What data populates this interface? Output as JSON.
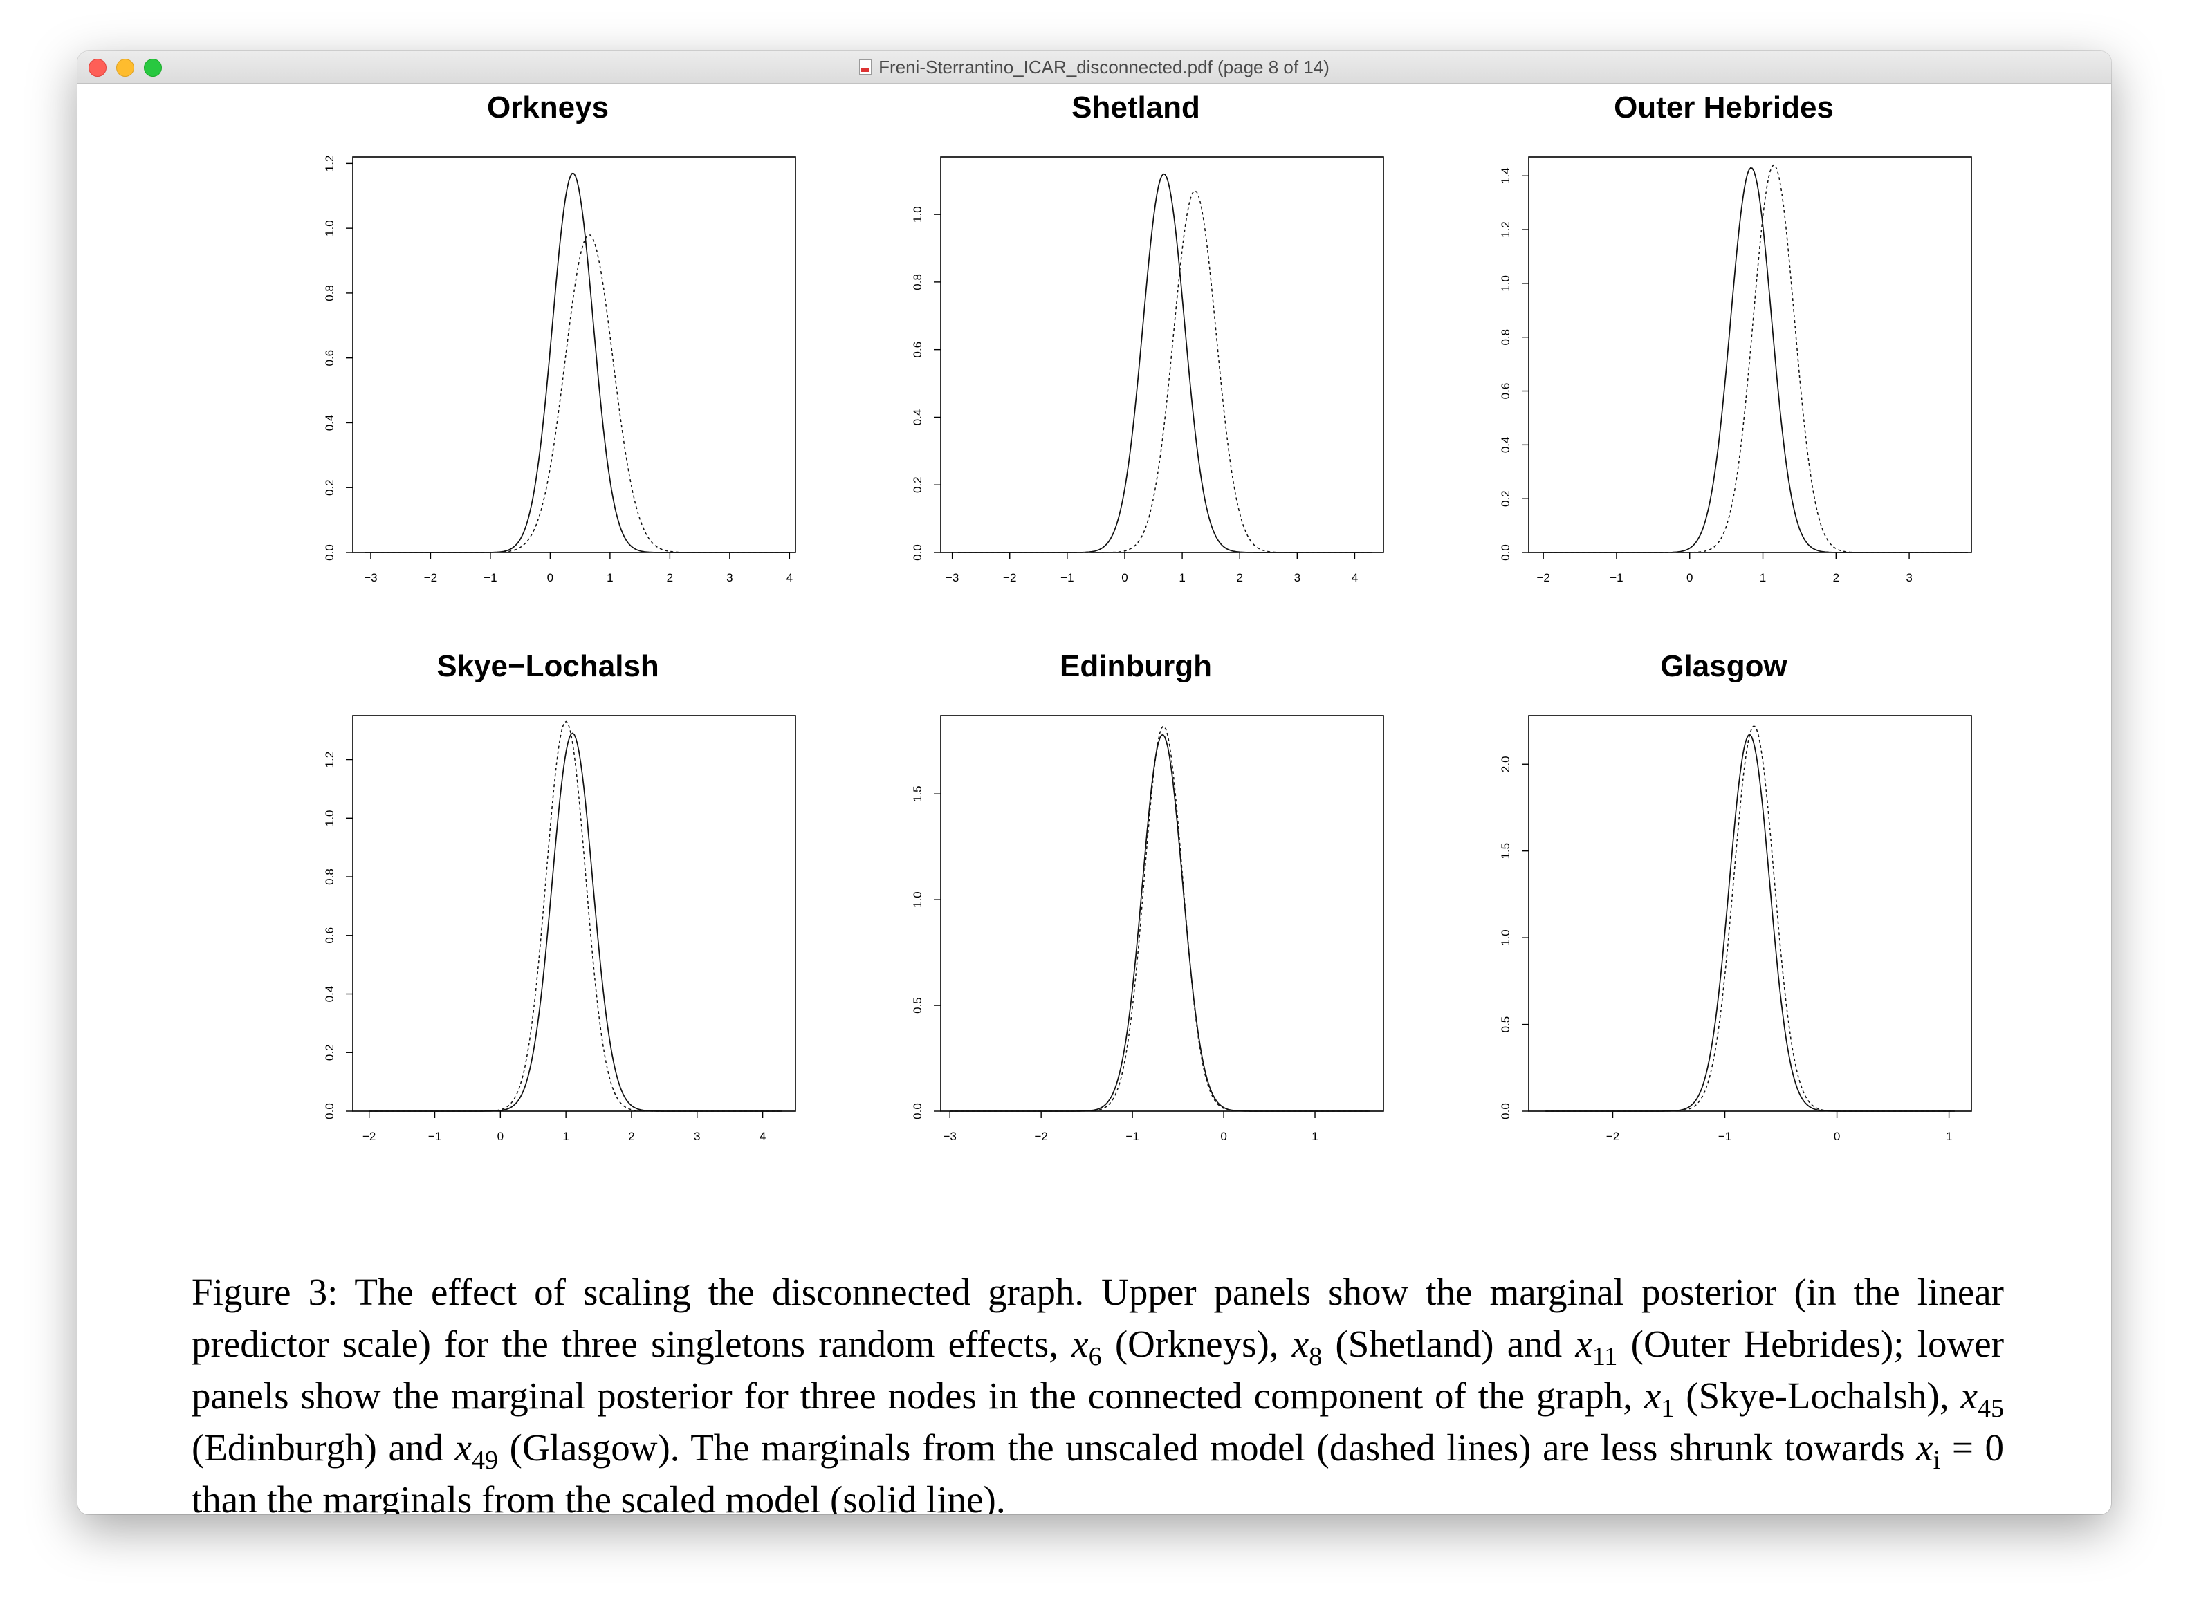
{
  "window": {
    "title": "Freni-Sterrantino_ICAR_disconnected.pdf (page 8 of 14)"
  },
  "chart_data": [
    {
      "type": "line",
      "title": "Orkneys",
      "xlim": [
        -3.3,
        4.1
      ],
      "ylim": [
        0,
        1.22
      ],
      "xticks": [
        "−3",
        "−2",
        "−1",
        "0",
        "1",
        "2",
        "3",
        "4"
      ],
      "xtick_values": [
        -3,
        -2,
        -1,
        0,
        1,
        2,
        3,
        4
      ],
      "yticks": [
        "0.0",
        "0.2",
        "0.4",
        "0.6",
        "0.8",
        "1.0",
        "1.2"
      ],
      "ytick_values": [
        0,
        0.2,
        0.4,
        0.6,
        0.8,
        1.0,
        1.2
      ],
      "x_range": [
        -3.1,
        4.0
      ],
      "series": [
        {
          "style": "solid",
          "mean": 0.38,
          "sd": 0.34,
          "peak": 1.17
        },
        {
          "style": "dashed",
          "mean": 0.65,
          "sd": 0.4,
          "peak": 0.98
        }
      ]
    },
    {
      "type": "line",
      "title": "Shetland",
      "xlim": [
        -3.2,
        4.5
      ],
      "ylim": [
        0,
        1.17
      ],
      "xticks": [
        "−3",
        "−2",
        "−1",
        "0",
        "1",
        "2",
        "3",
        "4"
      ],
      "xtick_values": [
        -3,
        -2,
        -1,
        0,
        1,
        2,
        3,
        4
      ],
      "yticks": [
        "0.0",
        "0.2",
        "0.4",
        "0.6",
        "0.8",
        "1.0"
      ],
      "ytick_values": [
        0,
        0.2,
        0.4,
        0.6,
        0.8,
        1.0
      ],
      "x_range": [
        -2.9,
        4.3
      ],
      "series": [
        {
          "style": "solid",
          "mean": 0.68,
          "sd": 0.36,
          "peak": 1.12
        },
        {
          "style": "dashed",
          "mean": 1.22,
          "sd": 0.37,
          "peak": 1.07
        }
      ]
    },
    {
      "type": "line",
      "title": "Outer Hebrides",
      "xlim": [
        -2.2,
        3.85
      ],
      "ylim": [
        0,
        1.47
      ],
      "xticks": [
        "−2",
        "−1",
        "0",
        "1",
        "2",
        "3"
      ],
      "xtick_values": [
        -2,
        -1,
        0,
        1,
        2,
        3
      ],
      "yticks": [
        "0.0",
        "0.2",
        "0.4",
        "0.6",
        "0.8",
        "1.0",
        "1.2",
        "1.4"
      ],
      "ytick_values": [
        0,
        0.2,
        0.4,
        0.6,
        0.8,
        1.0,
        1.2,
        1.4
      ],
      "x_range": [
        -2.0,
        3.8
      ],
      "series": [
        {
          "style": "solid",
          "mean": 0.84,
          "sd": 0.28,
          "peak": 1.43
        },
        {
          "style": "dashed",
          "mean": 1.15,
          "sd": 0.28,
          "peak": 1.44
        }
      ]
    },
    {
      "type": "line",
      "title": "Skye−Lochalsh",
      "xlim": [
        -2.25,
        4.5
      ],
      "ylim": [
        0,
        1.35
      ],
      "xticks": [
        "−2",
        "−1",
        "0",
        "1",
        "2",
        "3",
        "4"
      ],
      "xtick_values": [
        -2,
        -1,
        0,
        1,
        2,
        3,
        4
      ],
      "yticks": [
        "0.0",
        "0.2",
        "0.4",
        "0.6",
        "0.8",
        "1.0",
        "1.2"
      ],
      "ytick_values": [
        0,
        0.2,
        0.4,
        0.6,
        0.8,
        1.0,
        1.2
      ],
      "x_range": [
        -2.0,
        4.3
      ],
      "series": [
        {
          "style": "solid",
          "mean": 1.1,
          "sd": 0.31,
          "peak": 1.29
        },
        {
          "style": "dashed",
          "mean": 1.0,
          "sd": 0.3,
          "peak": 1.33
        }
      ]
    },
    {
      "type": "line",
      "title": "Edinburgh",
      "xlim": [
        -3.1,
        1.75
      ],
      "ylim": [
        0,
        1.87
      ],
      "xticks": [
        "−3",
        "−2",
        "−1",
        "0",
        "1"
      ],
      "xtick_values": [
        -3,
        -2,
        -1,
        0,
        1
      ],
      "yticks": [
        "0.0",
        "0.5",
        "1.0",
        "1.5"
      ],
      "ytick_values": [
        0,
        0.5,
        1.0,
        1.5
      ],
      "x_range": [
        -3.0,
        1.6
      ],
      "series": [
        {
          "style": "solid",
          "mean": -0.67,
          "sd": 0.22,
          "peak": 1.78
        },
        {
          "style": "dashed",
          "mean": -0.66,
          "sd": 0.21,
          "peak": 1.82
        }
      ]
    },
    {
      "type": "line",
      "title": "Glasgow",
      "xlim": [
        -2.75,
        1.2
      ],
      "ylim": [
        0,
        2.28
      ],
      "xticks": [
        "−2",
        "−1",
        "0",
        "1"
      ],
      "xtick_values": [
        -2,
        -1,
        0,
        1
      ],
      "yticks": [
        "0.0",
        "0.5",
        "1.0",
        "1.5",
        "2.0"
      ],
      "ytick_values": [
        0,
        0.5,
        1.0,
        1.5,
        2.0
      ],
      "x_range": [
        -2.6,
        1.05
      ],
      "series": [
        {
          "style": "solid",
          "mean": -0.78,
          "sd": 0.18,
          "peak": 2.17
        },
        {
          "style": "dashed",
          "mean": -0.74,
          "sd": 0.18,
          "peak": 2.22
        }
      ]
    }
  ],
  "caption": {
    "p1": "Figure 3: The effect of scaling the disconnected graph. Upper panels show the marginal posterior (in the linear predictor scale) for the three singletons random effects, ",
    "v1": "x",
    "s1": "6",
    "p2": " (Orkneys), ",
    "v2": "x",
    "s2": "8",
    "p3": " (Shetland) and ",
    "v3": "x",
    "s3": "11",
    "p4": " (Outer Hebrides); lower panels show the marginal posterior for three nodes in the connected component of the graph, ",
    "v4": "x",
    "s4": "1",
    "p5": " (Skye-Lochalsh), ",
    "v5": "x",
    "s5": "45",
    "p6": " (Edinburgh) and ",
    "v6": "x",
    "s6": "49",
    "p7": " (Glasgow). The marginals from the unscaled model (dashed lines) are less shrunk towards ",
    "v7": "x",
    "s7": "i",
    "p8": " = 0 than the marginals from the scaled model (solid line)."
  }
}
